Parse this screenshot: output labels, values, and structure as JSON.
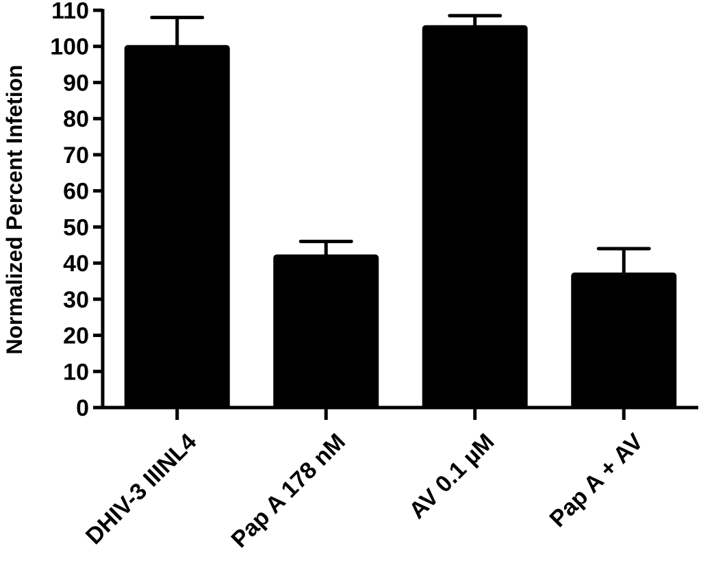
{
  "chart_data": {
    "type": "bar",
    "title": "",
    "xlabel": "",
    "ylabel": "Normalized Percent Infetion",
    "ylim": [
      0,
      110
    ],
    "yticks": [
      0,
      10,
      20,
      30,
      40,
      50,
      60,
      70,
      80,
      90,
      100,
      110
    ],
    "categories": [
      "DHIV-3 IIINL4",
      "Pap A 178 nM",
      "AV 0.1 µM",
      "Pap A + AV"
    ],
    "values": [
      100,
      42,
      105.5,
      37
    ],
    "error_upper": [
      108,
      46,
      108.5,
      44
    ],
    "bar_color": "#000000",
    "grid": false,
    "legend": "none"
  }
}
